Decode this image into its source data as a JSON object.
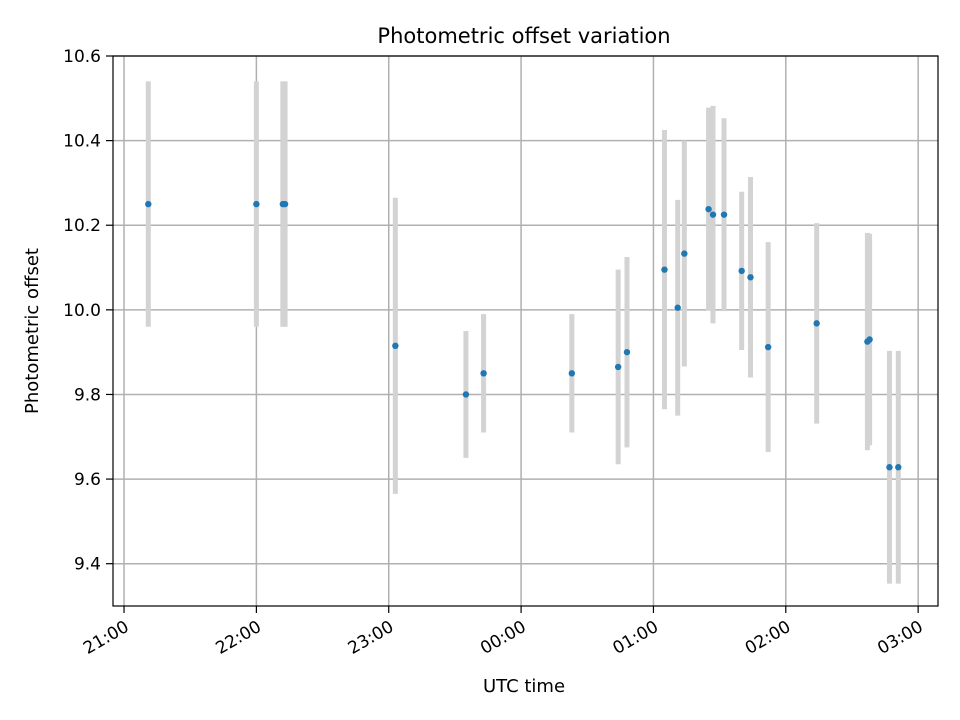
{
  "chart_data": {
    "type": "scatter",
    "title": "Photometric offset variation",
    "xlabel": "UTC time",
    "ylabel": "Photometric offset",
    "xlim": [
      "20:55",
      "03:09"
    ],
    "ylim": [
      9.3,
      10.6
    ],
    "x_ticks": [
      "21:00",
      "22:00",
      "23:00",
      "00:00",
      "01:00",
      "02:00",
      "03:00"
    ],
    "y_ticks": [
      9.4,
      9.6,
      9.8,
      10.0,
      10.2,
      10.4,
      10.6
    ],
    "grid": true,
    "colors": {
      "points": "#1f77b4",
      "error_bars": "#d3d3d3",
      "grid": "#b0b0b0"
    },
    "points": [
      {
        "x": "21:11",
        "y": 10.25,
        "err": 0.29
      },
      {
        "x": "22:00",
        "y": 10.25,
        "err": 0.29
      },
      {
        "x": "22:12",
        "y": 10.25,
        "err": 0.29
      },
      {
        "x": "22:13",
        "y": 10.25,
        "err": 0.29
      },
      {
        "x": "23:03",
        "y": 9.915,
        "err": 0.35
      },
      {
        "x": "23:35",
        "y": 9.8,
        "err": 0.15
      },
      {
        "x": "23:43",
        "y": 9.85,
        "err": 0.14
      },
      {
        "x": "00:23",
        "y": 9.85,
        "err": 0.14
      },
      {
        "x": "00:44",
        "y": 9.865,
        "err": 0.23
      },
      {
        "x": "00:48",
        "y": 9.9,
        "err": 0.225
      },
      {
        "x": "01:05",
        "y": 10.095,
        "err": 0.33
      },
      {
        "x": "01:11",
        "y": 10.005,
        "err": 0.255
      },
      {
        "x": "01:14",
        "y": 10.133,
        "err": 0.267
      },
      {
        "x": "01:25",
        "y": 10.238,
        "err": 0.24
      },
      {
        "x": "01:27",
        "y": 10.225,
        "err": 0.257
      },
      {
        "x": "01:32",
        "y": 10.225,
        "err": 0.228
      },
      {
        "x": "01:40",
        "y": 10.092,
        "err": 0.187
      },
      {
        "x": "01:44",
        "y": 10.077,
        "err": 0.237
      },
      {
        "x": "01:52",
        "y": 9.912,
        "err": 0.248
      },
      {
        "x": "02:14",
        "y": 9.968,
        "err": 0.237
      },
      {
        "x": "02:37",
        "y": 9.925,
        "err": 0.257
      },
      {
        "x": "02:38",
        "y": 9.93,
        "err": 0.25
      },
      {
        "x": "02:47",
        "y": 9.628,
        "err": 0.275
      },
      {
        "x": "02:51",
        "y": 9.628,
        "err": 0.275
      }
    ]
  }
}
